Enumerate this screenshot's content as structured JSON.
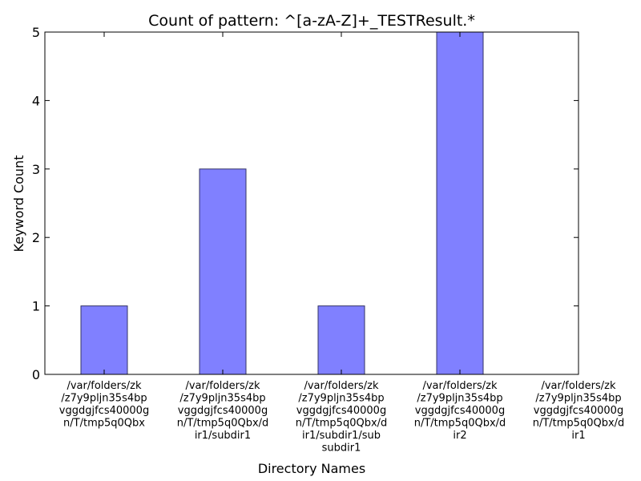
{
  "chart_data": {
    "type": "bar",
    "title": "Count of pattern: ^[a-zA-Z]+_TESTResult.*",
    "xlabel": "Directory Names",
    "ylabel": "Keyword Count",
    "ylim": [
      0,
      5
    ],
    "yticks": [
      "0",
      "1",
      "2",
      "3",
      "4",
      "5"
    ],
    "categories": [
      "/var/folders/zk/z7y9pljn35s4bpvggdgjfcs40000gn/T/tmp5q0Qbx",
      "/var/folders/zk/z7y9pljn35s4bpvggdgjfcs40000gn/T/tmp5q0Qbx/dir1/subdir1",
      "/var/folders/zk/z7y9pljn35s4bpvggdgjfcs40000gn/T/tmp5q0Qbx/dir1/subdir1/subsubdir1",
      "/var/folders/zk/z7y9pljn35s4bpvggdgjfcs40000gn/T/tmp5q0Qbx/dir2",
      "/var/folders/zk/z7y9pljn35s4bpvggdgjfcs40000gn/T/tmp5q0Qbx/dir1"
    ],
    "category_label_lines": [
      [
        "/var/folders/zk",
        "/z7y9pljn35s4bp",
        "vggdgjfcs40000g",
        "n/T/tmp5q0Qbx"
      ],
      [
        "/var/folders/zk",
        "/z7y9pljn35s4bp",
        "vggdgjfcs40000g",
        "n/T/tmp5q0Qbx/d",
        "ir1/subdir1"
      ],
      [
        "/var/folders/zk",
        "/z7y9pljn35s4bp",
        "vggdgjfcs40000g",
        "n/T/tmp5q0Qbx/d",
        "ir1/subdir1/sub",
        "subdir1"
      ],
      [
        "/var/folders/zk",
        "/z7y9pljn35s4bp",
        "vggdgjfcs40000g",
        "n/T/tmp5q0Qbx/d",
        "ir2"
      ],
      [
        "/var/folders/zk",
        "/z7y9pljn35s4bp",
        "vggdgjfcs40000g",
        "n/T/tmp5q0Qbx/d",
        "ir1"
      ]
    ],
    "values": [
      1,
      3,
      1,
      5,
      0
    ],
    "bar_color": "#8080ff",
    "bar_edge_color": "#333366",
    "grid": false
  }
}
